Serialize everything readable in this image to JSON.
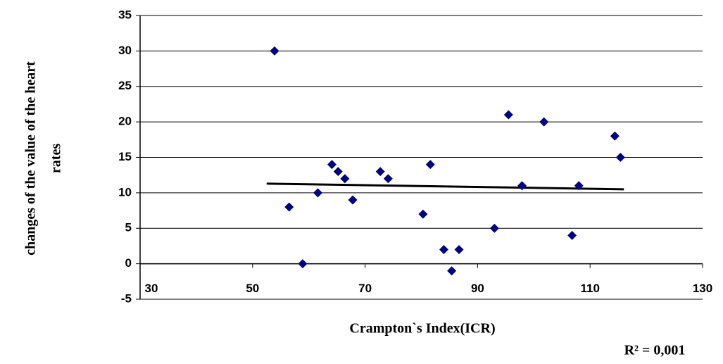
{
  "chart_data": {
    "type": "scatter",
    "xlabel": "Crampton`s Index(ICR)",
    "ylabel": [
      "changes of the value of the heart",
      "rates"
    ],
    "annotation": "R² = 0,001",
    "x": [
      53.9,
      56.5,
      58.9,
      61.6,
      64.1,
      65.2,
      66.4,
      67.8,
      72.7,
      74.1,
      80.3,
      81.6,
      84.0,
      85.4,
      86.7,
      93.0,
      95.5,
      97.9,
      101.8,
      106.8,
      108.0,
      114.4,
      115.4
    ],
    "values": [
      30,
      8,
      0,
      10,
      14,
      13,
      12,
      9,
      13,
      12,
      7,
      14,
      2,
      -1,
      2,
      5,
      21,
      11,
      20,
      4,
      11,
      18,
      15
    ],
    "color": "#000080",
    "trendline": {
      "x": [
        52.5,
        116
      ],
      "values": [
        11.3,
        10.5
      ],
      "color": "#000000"
    },
    "xlim": [
      30,
      130
    ],
    "xticks": [
      30,
      50,
      70,
      90,
      110,
      130
    ],
    "ylim": [
      -5,
      35
    ],
    "yticks": [
      -5,
      0,
      5,
      10,
      15,
      20,
      25,
      30,
      35
    ],
    "grid": true
  }
}
